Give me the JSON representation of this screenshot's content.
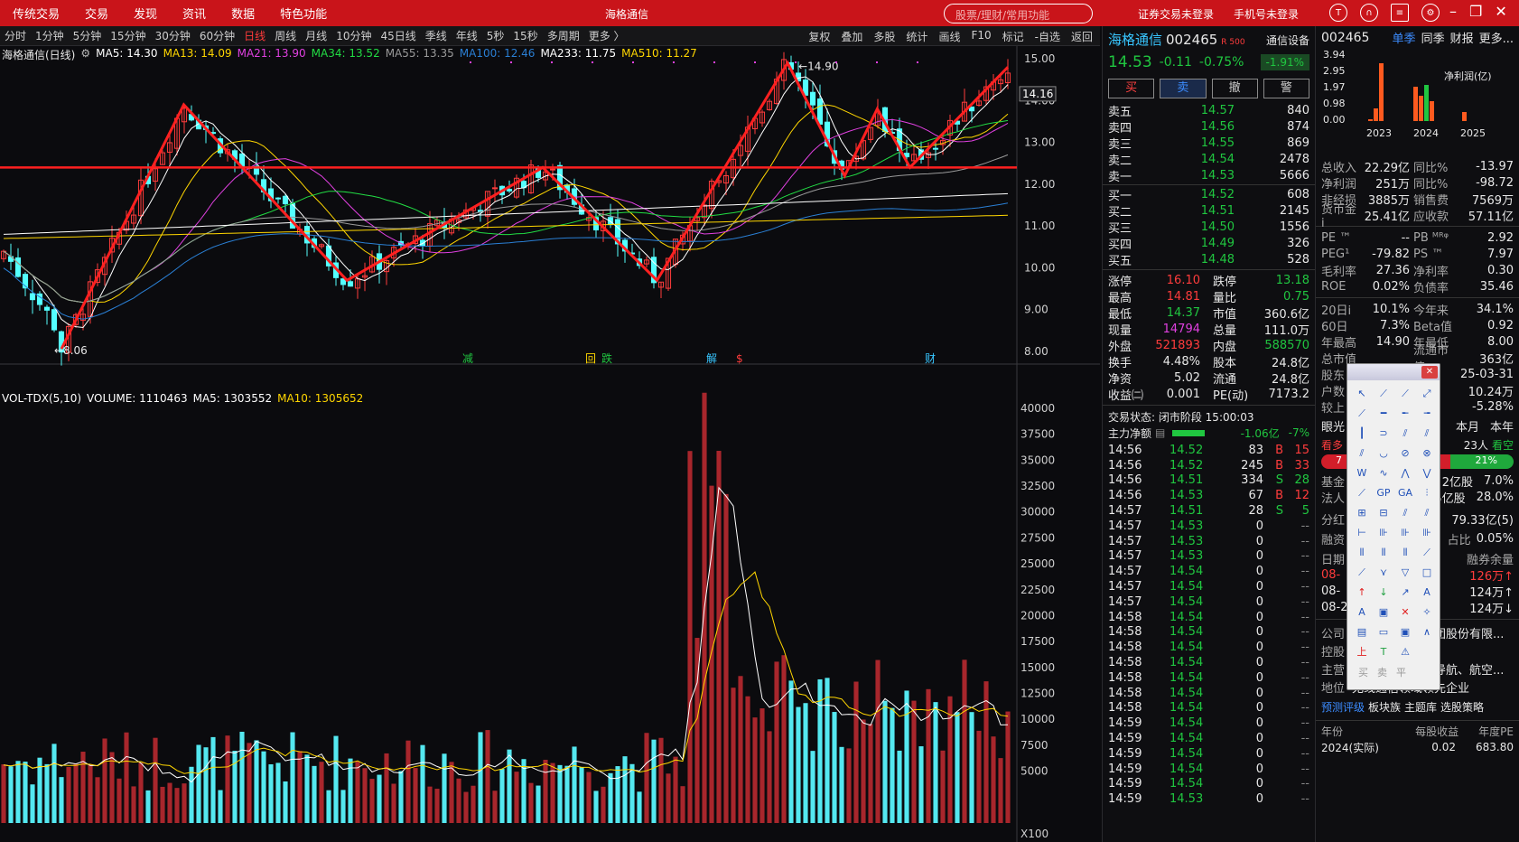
{
  "top_menu": [
    "传统交易",
    "交易",
    "发现",
    "资讯",
    "数据",
    "特色功能"
  ],
  "window_title": "海格通信",
  "search_placeholder": "股票/理财/常用功能",
  "top_links": [
    "证券交易未登录",
    "手机号未登录"
  ],
  "top_icons": [
    "t-logo-icon",
    "headset-icon",
    "document-icon",
    "gear-icon"
  ],
  "periods": [
    "分时",
    "1分钟",
    "5分钟",
    "15分钟",
    "30分钟",
    "60分钟",
    "日线",
    "周线",
    "月线",
    "10分钟",
    "45日线",
    "季线",
    "年线",
    "5秒",
    "15秒",
    "多周期",
    "更多 〉"
  ],
  "active_period": "日线",
  "tools": [
    "复权",
    "叠加",
    "多股",
    "统计",
    "画线",
    "F10",
    "标记",
    "-自选",
    "返回"
  ],
  "ma_legend": {
    "name": "海格通信(日线)",
    "items": [
      {
        "label": "MA5: 14.30",
        "color": "#ffffff"
      },
      {
        "label": "MA13: 14.09",
        "color": "#ffd600"
      },
      {
        "label": "MA21: 13.90",
        "color": "#e040e0"
      },
      {
        "label": "MA34: 13.52",
        "color": "#22dd44"
      },
      {
        "label": "MA55: 13.35",
        "color": "#9a9a9a"
      },
      {
        "label": "MA100: 12.46",
        "color": "#2a7fd4"
      },
      {
        "label": "MA233: 11.75",
        "color": "#ffffff"
      },
      {
        "label": "MA510: 11.27",
        "color": "#ffd600"
      }
    ]
  },
  "price_axis": [
    "15.00",
    "14.00",
    "13.00",
    "12.00",
    "11.00",
    "10.00",
    "9.00",
    "8.00"
  ],
  "price_current": "14.16",
  "price_high_label": "14.90",
  "price_low_label": "8.06",
  "chart_marks": [
    {
      "text": "减",
      "color": "#20c640"
    },
    {
      "text": "回",
      "color": "#ffd600"
    },
    {
      "text": "跌",
      "color": "#20c640"
    },
    {
      "text": "解",
      "color": "#38c6ff"
    },
    {
      "text": "$",
      "color": "#ff3c3c"
    },
    {
      "text": "财",
      "color": "#38c6ff"
    }
  ],
  "vol_legend": {
    "items": [
      {
        "label": "VOL-TDX(5,10)",
        "color": "#ffffff"
      },
      {
        "label": "VOLUME: 1110463",
        "color": "#ffffff"
      },
      {
        "label": "MA5: 1303552",
        "color": "#ffffff"
      },
      {
        "label": "MA10: 1305652",
        "color": "#ffd600"
      }
    ]
  },
  "vol_axis": [
    "40000",
    "37500",
    "35000",
    "32500",
    "30000",
    "27500",
    "25000",
    "22500",
    "20000",
    "17500",
    "15000",
    "12500",
    "10000",
    "7500",
    "5000"
  ],
  "vol_unit": "X100",
  "quote": {
    "name": "海格通信",
    "code": "002465",
    "tag": "R 500",
    "device": "通信设备",
    "price": "14.53",
    "change": "-0.11",
    "change_pct": "-0.75%",
    "sector_pct": "-1.91%",
    "buttons": [
      "买",
      "卖",
      "撤",
      "警"
    ],
    "asks": [
      {
        "label": "卖五",
        "price": "14.57",
        "vol": "840"
      },
      {
        "label": "卖四",
        "price": "14.56",
        "vol": "874"
      },
      {
        "label": "卖三",
        "price": "14.55",
        "vol": "869"
      },
      {
        "label": "卖二",
        "price": "14.54",
        "vol": "2478"
      },
      {
        "label": "卖一",
        "price": "14.53",
        "vol": "5666"
      }
    ],
    "bids": [
      {
        "label": "买一",
        "price": "14.52",
        "vol": "608"
      },
      {
        "label": "买二",
        "price": "14.51",
        "vol": "2145"
      },
      {
        "label": "买三",
        "price": "14.50",
        "vol": "1556"
      },
      {
        "label": "买四",
        "price": "14.49",
        "vol": "326"
      },
      {
        "label": "买五",
        "price": "14.48",
        "vol": "528"
      }
    ],
    "stats": [
      {
        "l1": "涨停",
        "v1": "16.10",
        "c1": "red",
        "l2": "跌停",
        "v2": "13.18",
        "c2": "green"
      },
      {
        "l1": "最高",
        "v1": "14.81",
        "c1": "red",
        "l2": "量比",
        "v2": "0.75",
        "c2": "green"
      },
      {
        "l1": "最低",
        "v1": "14.37",
        "c1": "green",
        "l2": "市值",
        "v2": "360.6亿",
        "c2": "white"
      },
      {
        "l1": "现量",
        "v1": "14794",
        "c1": "mag",
        "l2": "总量",
        "v2": "111.0万",
        "c2": "white"
      },
      {
        "l1": "外盘",
        "v1": "521893",
        "c1": "red",
        "l2": "内盘",
        "v2": "588570",
        "c2": "green"
      },
      {
        "l1": "换手",
        "v1": "4.48%",
        "c1": "white",
        "l2": "股本",
        "v2": "24.8亿",
        "c2": "white"
      },
      {
        "l1": "净资",
        "v1": "5.02",
        "c1": "white",
        "l2": "流通",
        "v2": "24.8亿",
        "c2": "white"
      },
      {
        "l1": "收益㈡",
        "v1": "0.001",
        "c1": "white",
        "l2": "PE(动)",
        "v2": "7173.2",
        "c2": "white"
      }
    ],
    "trade_status": "交易状态: 闭市阶段 15:00:03",
    "main_flow_label": "主力净额",
    "main_flow_value": "-1.06亿",
    "main_flow_pct": "-7%",
    "ticks": [
      {
        "t": "14:56",
        "p": "14.52",
        "v": "83",
        "bs": "B",
        "n": "15"
      },
      {
        "t": "14:56",
        "p": "14.52",
        "v": "245",
        "bs": "B",
        "n": "33"
      },
      {
        "t": "14:56",
        "p": "14.51",
        "v": "334",
        "bs": "S",
        "n": "28"
      },
      {
        "t": "14:56",
        "p": "14.53",
        "v": "67",
        "bs": "B",
        "n": "12"
      },
      {
        "t": "14:57",
        "p": "14.51",
        "v": "28",
        "bs": "S",
        "n": "5"
      },
      {
        "t": "14:57",
        "p": "14.53",
        "v": "0",
        "bs": "",
        "n": "--"
      },
      {
        "t": "14:57",
        "p": "14.53",
        "v": "0",
        "bs": "",
        "n": "--"
      },
      {
        "t": "14:57",
        "p": "14.53",
        "v": "0",
        "bs": "",
        "n": "--"
      },
      {
        "t": "14:57",
        "p": "14.54",
        "v": "0",
        "bs": "",
        "n": "--"
      },
      {
        "t": "14:57",
        "p": "14.54",
        "v": "0",
        "bs": "",
        "n": "--"
      },
      {
        "t": "14:57",
        "p": "14.54",
        "v": "0",
        "bs": "",
        "n": "--"
      },
      {
        "t": "14:58",
        "p": "14.54",
        "v": "0",
        "bs": "",
        "n": "--"
      },
      {
        "t": "14:58",
        "p": "14.54",
        "v": "0",
        "bs": "",
        "n": "--"
      },
      {
        "t": "14:58",
        "p": "14.54",
        "v": "0",
        "bs": "",
        "n": "--"
      },
      {
        "t": "14:58",
        "p": "14.54",
        "v": "0",
        "bs": "",
        "n": "--"
      },
      {
        "t": "14:58",
        "p": "14.54",
        "v": "0",
        "bs": "",
        "n": "--"
      },
      {
        "t": "14:58",
        "p": "14.54",
        "v": "0",
        "bs": "",
        "n": "--"
      },
      {
        "t": "14:58",
        "p": "14.54",
        "v": "0",
        "bs": "",
        "n": "--"
      },
      {
        "t": "14:59",
        "p": "14.54",
        "v": "0",
        "bs": "",
        "n": "--"
      },
      {
        "t": "14:59",
        "p": "14.54",
        "v": "0",
        "bs": "",
        "n": "--"
      },
      {
        "t": "14:59",
        "p": "14.54",
        "v": "0",
        "bs": "",
        "n": "--"
      },
      {
        "t": "14:59",
        "p": "14.54",
        "v": "0",
        "bs": "",
        "n": "--"
      },
      {
        "t": "14:59",
        "p": "14.54",
        "v": "0",
        "bs": "",
        "n": "--"
      },
      {
        "t": "14:59",
        "p": "14.53",
        "v": "0",
        "bs": "",
        "n": "--"
      }
    ]
  },
  "fund": {
    "code": "002465",
    "tabs": [
      "单季",
      "同季",
      "财报",
      "更多..."
    ],
    "chart_title": "净利润(亿)",
    "y_ticks": [
      "3.94",
      "2.95",
      "1.97",
      "0.98",
      "0.00"
    ],
    "x_ticks": [
      "2023",
      "2024",
      "2025"
    ],
    "stats1": [
      {
        "l1": "总收入",
        "v1": "22.29亿",
        "l2": "同比%",
        "v2": "-13.97"
      },
      {
        "l1": "净利润",
        "v1": "251万",
        "l2": "同比%",
        "v2": "-98.72"
      },
      {
        "l1": "非经损",
        "v1": "3885万",
        "l2": "销售费",
        "v2": "7569万"
      },
      {
        "l1": "货币金i",
        "v1": "25.41亿",
        "l2": "应收款",
        "v2": "57.11亿"
      }
    ],
    "stats2": [
      {
        "l1": "PE ™",
        "v1": "--",
        "l2": "PB ᴹᴿᵠ",
        "v2": "2.92"
      },
      {
        "l1": "PEG¹",
        "v1": "-79.82",
        "l2": "PS ™",
        "v2": "7.97"
      },
      {
        "l1": "毛利率",
        "v1": "27.36",
        "l2": "净利率",
        "v2": "0.30"
      },
      {
        "l1": "ROE",
        "v1": "0.02%",
        "l2": "负债率",
        "v2": "35.46"
      }
    ],
    "stats3": [
      {
        "l1": "20日i",
        "v1": "10.1%",
        "l2": "今年来",
        "v2": "34.1%"
      },
      {
        "l1": "60日",
        "v1": "7.3%",
        "l2": "Beta值",
        "v2": "0.92"
      },
      {
        "l1": "年最高",
        "v1": "14.90",
        "l2": "年最低",
        "v2": "8.00"
      },
      {
        "l1": "总市值",
        "v1": "",
        "l2": "流通市值",
        "v2": "363亿"
      }
    ],
    "holders": [
      {
        "l": "股东",
        "v": "25-03-31"
      },
      {
        "l": "户数",
        "v": "10.24万"
      },
      {
        "l": "较上",
        "v": "-5.28%"
      }
    ],
    "eye_tabs": [
      "眼光",
      "本月",
      "本年"
    ],
    "kanduo": "看多",
    "kankong": "看空",
    "people": "23人",
    "bull_pct": "7",
    "bear_pct": "21%",
    "fund_rows": [
      {
        "l": "基金",
        "v": "2亿股",
        "p": "7.0%"
      },
      {
        "l": "法人",
        "v": "5亿股",
        "p": "28.0%"
      }
    ],
    "div_label": "分红",
    "div_value": "79.33亿(5)",
    "margin_label": "融资",
    "margin_pct_label": "占比",
    "margin_pct": "0.05%",
    "date_label": "日期",
    "short_bal_label": "融券余量",
    "margin_rows": [
      {
        "d": "08-",
        "v": "126万↑",
        "c": "red"
      },
      {
        "d": "08-",
        "v": "124万↑",
        "c": "white"
      },
      {
        "d": "08-2",
        "v": "124万↓",
        "c": "white"
      }
    ],
    "company": [
      {
        "l": "公司",
        "v": "广州海格通信集团股份有限..."
      },
      {
        "l": "控股",
        "v": "广州市人民政府"
      },
      {
        "l": "主营",
        "v": "无线通信、北斗导航、航空..."
      },
      {
        "l": "地位",
        "v": "无线通信领域领先企业"
      }
    ],
    "links": [
      "预测评级",
      "板块族",
      "主题库",
      "选股策略"
    ],
    "eps_header": [
      "年份",
      "每股收益",
      "年度PE"
    ],
    "eps_row": [
      "2024(实际)",
      "0.02",
      "683.80"
    ]
  },
  "draw_tools": [
    "arrow-cursor",
    "line",
    "ray",
    "segment",
    "line2",
    "hline",
    "hline2",
    "hline3",
    "vline",
    "ellipse",
    "parallel",
    "parallel2",
    "trend",
    "arc",
    "circle",
    "circle2",
    "wave",
    "wave2",
    "wave3",
    "wave4",
    "zigzag",
    "gann",
    "gann2",
    "fib",
    "fib2",
    "fib3",
    "fan",
    "fan2",
    "cycle",
    "cycle2",
    "cycle3",
    "cycle4",
    "grid",
    "grid2",
    "grid3",
    "spike",
    "fan3",
    "arrow-down",
    "triangle",
    "rect",
    "up-arrow",
    "down-arrow",
    "trend-up",
    "text",
    "text2",
    "box",
    "cross",
    "bulb",
    "note",
    "ruler",
    "image",
    "arc2",
    "up-mark",
    "tee",
    "warn",
    "blank"
  ],
  "draw_tool_footer": [
    "买",
    "卖",
    "平"
  ],
  "chart_data": {
    "type": "candlestick",
    "price_ylim": [
      8.0,
      15.0
    ],
    "vol_ylim": [
      0,
      42000
    ],
    "zigzag_points": [
      [
        0,
        8.06
      ],
      [
        15,
        13.9
      ],
      [
        35,
        9.7
      ],
      [
        59,
        12.4
      ],
      [
        73,
        9.7
      ],
      [
        89,
        14.9
      ],
      [
        96,
        12.2
      ],
      [
        100,
        13.8
      ],
      [
        104,
        12.4
      ],
      [
        116,
        14.8
      ]
    ],
    "resistance_line": 12.4,
    "annotations": [
      "14.90",
      "8.06"
    ]
  }
}
